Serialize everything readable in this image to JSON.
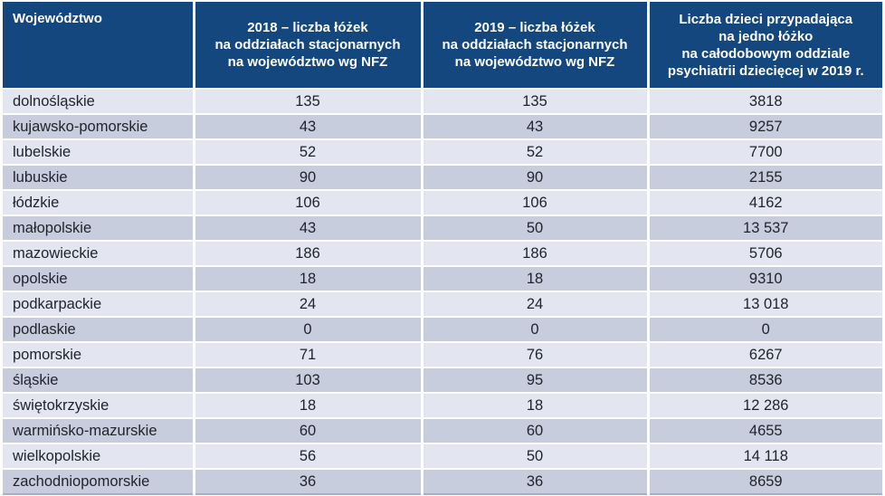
{
  "table": {
    "columns": [
      {
        "key": "voivodeship",
        "label": "Województwo"
      },
      {
        "key": "beds_2018",
        "label": "2018 – liczba łóżek\nna oddziałach stacjonarnych\nna województwo wg NFZ"
      },
      {
        "key": "beds_2019",
        "label": "2019 – liczba łóżek\nna oddziałach stacjonarnych\nna województwo wg NFZ"
      },
      {
        "key": "children_per_bed_2019",
        "label": "Liczba dzieci przypadająca\nna jedno łóżko\nna całodobowym oddziale\npsychiatrii dziecięcej w 2019 r."
      }
    ],
    "rows": [
      [
        "dolnośląskie",
        "135",
        "135",
        "3818"
      ],
      [
        "kujawsko-pomorskie",
        "43",
        "43",
        "9257"
      ],
      [
        "lubelskie",
        "52",
        "52",
        "7700"
      ],
      [
        "lubuskie",
        "90",
        "90",
        "2155"
      ],
      [
        "łódzkie",
        "106",
        "106",
        "4162"
      ],
      [
        "małopolskie",
        "43",
        "50",
        "13 537"
      ],
      [
        "mazowieckie",
        "186",
        "186",
        "5706"
      ],
      [
        "opolskie",
        "18",
        "18",
        "9310"
      ],
      [
        "podkarpackie",
        "24",
        "24",
        "13 018"
      ],
      [
        "podlaskie",
        "0",
        "0",
        "0"
      ],
      [
        "pomorskie",
        "71",
        "76",
        "6267"
      ],
      [
        "śląskie",
        "103",
        "95",
        "8536"
      ],
      [
        "świętokrzyskie",
        "18",
        "18",
        "12 286"
      ],
      [
        "warmińsko-mazurskie",
        "60",
        "60",
        "4655"
      ],
      [
        "wielkopolskie",
        "56",
        "50",
        "14 118"
      ],
      [
        "zachodniopomorskie",
        "36",
        "36",
        "8659"
      ]
    ]
  },
  "colors": {
    "header_background": "#14477e",
    "header_text": "#ffffff",
    "row_light": "#e3e6f0",
    "row_dark": "#c8cdde",
    "body_text": "#20242c",
    "divider": "#ffffff",
    "bottom_border": "#a7afc7"
  }
}
